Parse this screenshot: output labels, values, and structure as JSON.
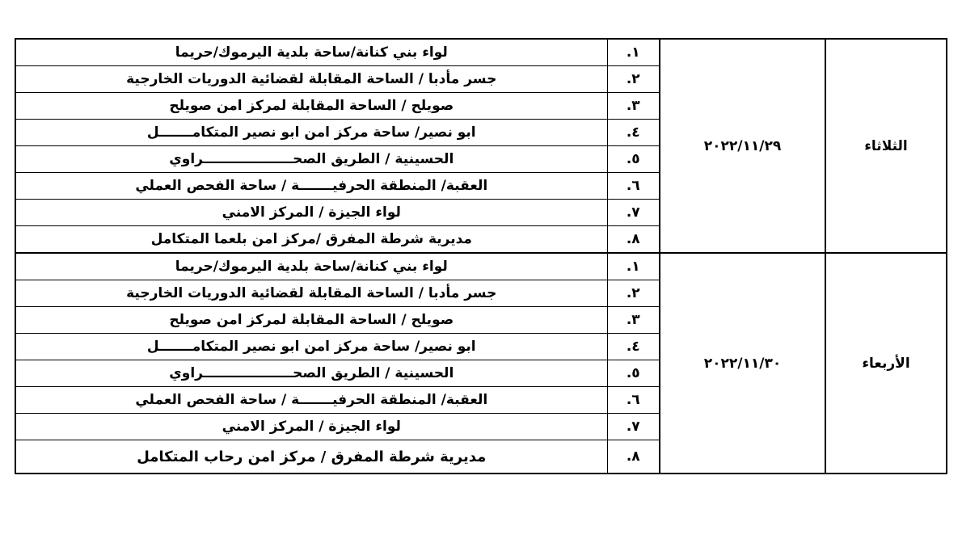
{
  "schedule": [
    {
      "day": "الثلاثاء",
      "date": "٢٠٢٢/١١/٢٩",
      "rows": [
        {
          "num": "١.",
          "location": "لواء بني كنانة/ساحة بلدية اليرموك/حريما"
        },
        {
          "num": "٢.",
          "location": "جسر مأدبا / الساحة المقابلة لقضائية الدوريات الخارجية"
        },
        {
          "num": "٣.",
          "location": "صويلح / الساحة المقابلة لمركز امن صويلح"
        },
        {
          "num": "٤.",
          "location": "ابو نصير/ ساحة مركز امن ابو نصير المتكامـــــــل"
        },
        {
          "num": "٥.",
          "location": "الحسينية / الطريق الصحـــــــــــــــــــراوي"
        },
        {
          "num": "٦.",
          "location": "العقبة/ المنطقة الحرفيـــــــة / ساحة الفحص العملي"
        },
        {
          "num": "٧.",
          "location": "لواء الجيزة / المركز الامني"
        },
        {
          "num": "٨.",
          "location": "مديرية شرطة المفرق /مركز امن بلعما المتكامل"
        }
      ]
    },
    {
      "day": "الأربعاء",
      "date": "٢٠٢٢/١١/٣٠",
      "rows": [
        {
          "num": "١.",
          "location": "لواء بني كنانة/ساحة بلدية اليرموك/حريما"
        },
        {
          "num": "٢.",
          "location": "جسر مأدبا / الساحة المقابلة لقضائية الدوريات الخارجية"
        },
        {
          "num": "٣.",
          "location": "صويلح / الساحة المقابلة لمركز امن صويلح"
        },
        {
          "num": "٤.",
          "location": "ابو نصير/ ساحة مركز امن ابو نصير المتكامـــــــل"
        },
        {
          "num": "٥.",
          "location": "الحسينية / الطريق الصحـــــــــــــــــــراوي"
        },
        {
          "num": "٦.",
          "location": "العقبة/ المنطقة الحرفيـــــــة / ساحة الفحص العملي"
        },
        {
          "num": "٧.",
          "location": "لواء الجيزة / المركز الامني"
        },
        {
          "num": "٨.",
          "location": "مديرية شرطة المفرق / مركز امن رحاب المتكامل"
        }
      ]
    }
  ]
}
